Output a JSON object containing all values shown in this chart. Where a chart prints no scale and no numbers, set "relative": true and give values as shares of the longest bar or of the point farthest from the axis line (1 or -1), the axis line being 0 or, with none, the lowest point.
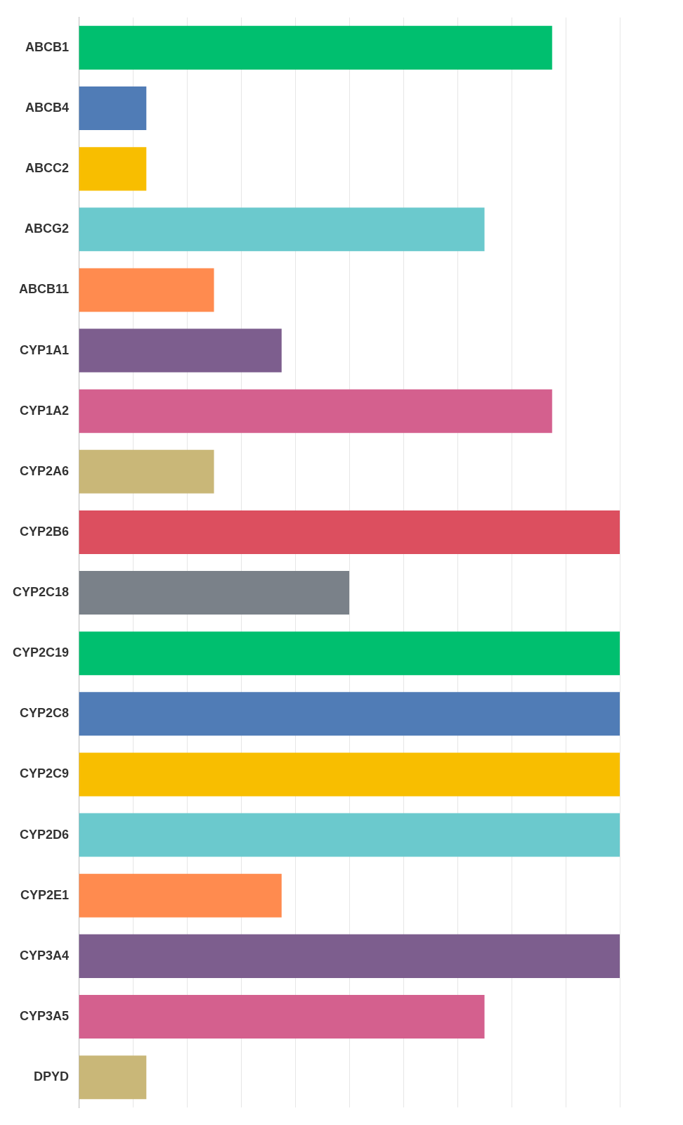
{
  "chart_data": {
    "type": "bar",
    "orientation": "horizontal",
    "relative": true,
    "grid": "x",
    "categories": [
      "ABCB1",
      "ABCB4",
      "ABCC2",
      "ABCG2",
      "ABCB11",
      "CYP1A1",
      "CYP1A2",
      "CYP2A6",
      "CYP2B6",
      "CYP2C18",
      "CYP2C19",
      "CYP2C8",
      "CYP2C9",
      "CYP2D6",
      "CYP2E1",
      "CYP3A4",
      "CYP3A5",
      "DPYD"
    ],
    "values": [
      0.875,
      0.125,
      0.125,
      0.75,
      0.25,
      0.375,
      0.875,
      0.25,
      1,
      0.5,
      1,
      1,
      1,
      1,
      0.375,
      1,
      0.75,
      0.125
    ],
    "colors": [
      "#00bf6f",
      "#507cb6",
      "#f8be00",
      "#6bc9cd",
      "#ff8b4f",
      "#7d5e8e",
      "#d4608e",
      "#c9b778",
      "#dc4f5f",
      "#7a8189",
      "#00bf6f",
      "#507cb6",
      "#f8be00",
      "#6bc9cd",
      "#ff8b4f",
      "#7d5e8e",
      "#d4608e",
      "#c9b778"
    ]
  }
}
